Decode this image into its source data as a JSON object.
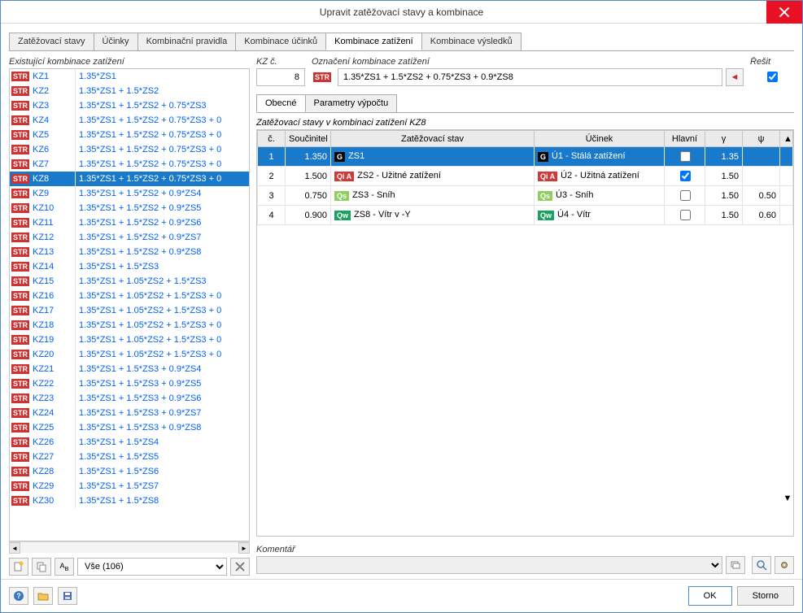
{
  "window": {
    "title": "Upravit zatěžovací stavy a kombinace"
  },
  "main_tabs": [
    "Zatěžovací stavy",
    "Účinky",
    "Kombinační pravidla",
    "Kombinace účinků",
    "Kombinace zatížení",
    "Kombinace výsledků"
  ],
  "main_tab_active": 4,
  "left": {
    "title": "Existující kombinace zatížení",
    "selected": 7,
    "items": [
      {
        "id": "KZ1",
        "desc": "1.35*ZS1"
      },
      {
        "id": "KZ2",
        "desc": "1.35*ZS1 + 1.5*ZS2"
      },
      {
        "id": "KZ3",
        "desc": "1.35*ZS1 + 1.5*ZS2 + 0.75*ZS3"
      },
      {
        "id": "KZ4",
        "desc": "1.35*ZS1 + 1.5*ZS2 + 0.75*ZS3 + 0"
      },
      {
        "id": "KZ5",
        "desc": "1.35*ZS1 + 1.5*ZS2 + 0.75*ZS3 + 0"
      },
      {
        "id": "KZ6",
        "desc": "1.35*ZS1 + 1.5*ZS2 + 0.75*ZS3 + 0"
      },
      {
        "id": "KZ7",
        "desc": "1.35*ZS1 + 1.5*ZS2 + 0.75*ZS3 + 0"
      },
      {
        "id": "KZ8",
        "desc": "1.35*ZS1 + 1.5*ZS2 + 0.75*ZS3 + 0"
      },
      {
        "id": "KZ9",
        "desc": "1.35*ZS1 + 1.5*ZS2 + 0.9*ZS4"
      },
      {
        "id": "KZ10",
        "desc": "1.35*ZS1 + 1.5*ZS2 + 0.9*ZS5"
      },
      {
        "id": "KZ11",
        "desc": "1.35*ZS1 + 1.5*ZS2 + 0.9*ZS6"
      },
      {
        "id": "KZ12",
        "desc": "1.35*ZS1 + 1.5*ZS2 + 0.9*ZS7"
      },
      {
        "id": "KZ13",
        "desc": "1.35*ZS1 + 1.5*ZS2 + 0.9*ZS8"
      },
      {
        "id": "KZ14",
        "desc": "1.35*ZS1 + 1.5*ZS3"
      },
      {
        "id": "KZ15",
        "desc": "1.35*ZS1 + 1.05*ZS2 + 1.5*ZS3"
      },
      {
        "id": "KZ16",
        "desc": "1.35*ZS1 + 1.05*ZS2 + 1.5*ZS3 + 0"
      },
      {
        "id": "KZ17",
        "desc": "1.35*ZS1 + 1.05*ZS2 + 1.5*ZS3 + 0"
      },
      {
        "id": "KZ18",
        "desc": "1.35*ZS1 + 1.05*ZS2 + 1.5*ZS3 + 0"
      },
      {
        "id": "KZ19",
        "desc": "1.35*ZS1 + 1.05*ZS2 + 1.5*ZS3 + 0"
      },
      {
        "id": "KZ20",
        "desc": "1.35*ZS1 + 1.05*ZS2 + 1.5*ZS3 + 0"
      },
      {
        "id": "KZ21",
        "desc": "1.35*ZS1 + 1.5*ZS3 + 0.9*ZS4"
      },
      {
        "id": "KZ22",
        "desc": "1.35*ZS1 + 1.5*ZS3 + 0.9*ZS5"
      },
      {
        "id": "KZ23",
        "desc": "1.35*ZS1 + 1.5*ZS3 + 0.9*ZS6"
      },
      {
        "id": "KZ24",
        "desc": "1.35*ZS1 + 1.5*ZS3 + 0.9*ZS7"
      },
      {
        "id": "KZ25",
        "desc": "1.35*ZS1 + 1.5*ZS3 + 0.9*ZS8"
      },
      {
        "id": "KZ26",
        "desc": "1.35*ZS1 + 1.5*ZS4"
      },
      {
        "id": "KZ27",
        "desc": "1.35*ZS1 + 1.5*ZS5"
      },
      {
        "id": "KZ28",
        "desc": "1.35*ZS1 + 1.5*ZS6"
      },
      {
        "id": "KZ29",
        "desc": "1.35*ZS1 + 1.5*ZS7"
      },
      {
        "id": "KZ30",
        "desc": "1.35*ZS1 + 1.5*ZS8"
      }
    ],
    "filter": "Vše (106)"
  },
  "right": {
    "kz_label": "KZ č.",
    "kz_value": "8",
    "oznaceni_label": "Označení kombinace zatížení",
    "oznaceni_value": "1.35*ZS1 + 1.5*ZS2 + 0.75*ZS3 + 0.9*ZS8",
    "resit_label": "Řešit",
    "resit_checked": true,
    "sub_tabs": [
      "Obecné",
      "Parametry výpočtu"
    ],
    "sub_tab_active": 0,
    "grid_title": "Zatěžovací stavy v kombinaci zatížení KZ8",
    "columns": {
      "c": "č.",
      "soucinitel": "Součinitel",
      "zs": "Zatěžovací stav",
      "ucinek": "Účinek",
      "hlavni": "Hlavní",
      "gamma": "γ",
      "psi": "ψ",
      "scroll": ""
    },
    "rows": [
      {
        "n": "1",
        "coef": "1.350",
        "cat": "G",
        "catColor": "#000000",
        "zs": "ZS1",
        "ucat": "G",
        "ucatColor": "#000000",
        "u": "Ú1 - Stálá zatížení",
        "hlavni": false,
        "gamma": "1.35",
        "psi": "",
        "selected": true
      },
      {
        "n": "2",
        "coef": "1.500",
        "cat": "Qi A",
        "catColor": "#d23a3a",
        "zs": "ZS2 - Užitné zatížení",
        "ucat": "Qi A",
        "ucatColor": "#d23a3a",
        "u": "Ú2 - Užitná zatížení",
        "hlavni": true,
        "gamma": "1.50",
        "psi": "",
        "selected": false
      },
      {
        "n": "3",
        "coef": "0.750",
        "cat": "Qs",
        "catColor": "#8fcf5d",
        "zs": "ZS3 - Sníh",
        "ucat": "Qs",
        "ucatColor": "#8fcf5d",
        "u": "Ú3 - Sníh",
        "hlavni": false,
        "gamma": "1.50",
        "psi": "0.50",
        "selected": false
      },
      {
        "n": "4",
        "coef": "0.900",
        "cat": "Qw",
        "catColor": "#1aa260",
        "zs": "ZS8 - Vítr v -Y",
        "ucat": "Qw",
        "ucatColor": "#1aa260",
        "u": "Ú4 - Vítr",
        "hlavni": false,
        "gamma": "1.50",
        "psi": "0.60",
        "selected": false
      }
    ],
    "komentar_label": "Komentář"
  },
  "buttons": {
    "ok": "OK",
    "storno": "Storno"
  },
  "colors": {
    "selection": "#1979ca",
    "border": "#c4c4c4",
    "link": "#0060ff",
    "str": "#cc3333",
    "close": "#e81123"
  }
}
